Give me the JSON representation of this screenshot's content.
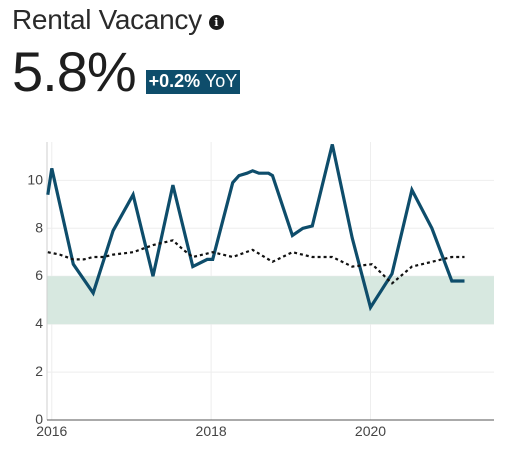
{
  "header": {
    "title": "Rental Vacancy",
    "info_icon": "info-icon",
    "value": "5.8%",
    "change": "+0.2%",
    "change_suffix": "YoY"
  },
  "colors": {
    "series": "#0e4d6b",
    "band": "#d7e8e0",
    "trend": "#111111",
    "badge": "#0e4d6b",
    "grid": "#eeeeee"
  },
  "chart_data": {
    "type": "line",
    "title": "",
    "xlabel": "",
    "ylabel": "",
    "xlim": [
      2015.94,
      2021.55
    ],
    "ylim": [
      0,
      11.6
    ],
    "yticks": [
      0,
      2,
      4,
      6,
      8,
      10
    ],
    "xticks": [
      2016,
      2018,
      2020
    ],
    "ytick_labels": [
      "0",
      "2",
      "4",
      "6",
      "8",
      "10"
    ],
    "xtick_labels": [
      "2016",
      "2018",
      "2020"
    ],
    "grid": true,
    "legend": "none",
    "band": {
      "from": 4.0,
      "to": 6.0
    },
    "series": [
      {
        "style": "solid",
        "x": [
          2015.95,
          2016.0,
          2016.27,
          2016.52,
          2016.77,
          2017.02,
          2017.27,
          2017.52,
          2017.77,
          2017.95,
          2018.02,
          2018.27,
          2018.35,
          2018.45,
          2018.52,
          2018.6,
          2018.72,
          2018.77,
          2019.02,
          2019.15,
          2019.27,
          2019.52,
          2019.77,
          2020.0,
          2020.27,
          2020.52,
          2020.77,
          2021.02,
          2021.18
        ],
        "y": [
          9.4,
          10.5,
          6.5,
          5.3,
          7.9,
          9.4,
          6.0,
          9.8,
          6.4,
          6.7,
          6.7,
          9.9,
          10.2,
          10.3,
          10.4,
          10.3,
          10.3,
          10.2,
          7.7,
          8.0,
          8.1,
          11.5,
          7.6,
          4.7,
          6.1,
          9.6,
          8.0,
          5.8,
          5.8
        ]
      },
      {
        "style": "dotted",
        "x": [
          2015.95,
          2016.1,
          2016.27,
          2016.4,
          2016.52,
          2016.65,
          2016.77,
          2017.02,
          2017.27,
          2017.52,
          2017.65,
          2017.77,
          2018.02,
          2018.27,
          2018.52,
          2018.77,
          2019.02,
          2019.27,
          2019.52,
          2019.77,
          2020.02,
          2020.27,
          2020.52,
          2020.77,
          2021.02,
          2021.18
        ],
        "y": [
          7.0,
          6.9,
          6.7,
          6.7,
          6.8,
          6.8,
          6.9,
          7.0,
          7.3,
          7.5,
          7.1,
          6.8,
          7.0,
          6.8,
          7.1,
          6.6,
          7.0,
          6.8,
          6.8,
          6.4,
          6.5,
          5.7,
          6.4,
          6.6,
          6.8,
          6.8
        ]
      }
    ]
  }
}
